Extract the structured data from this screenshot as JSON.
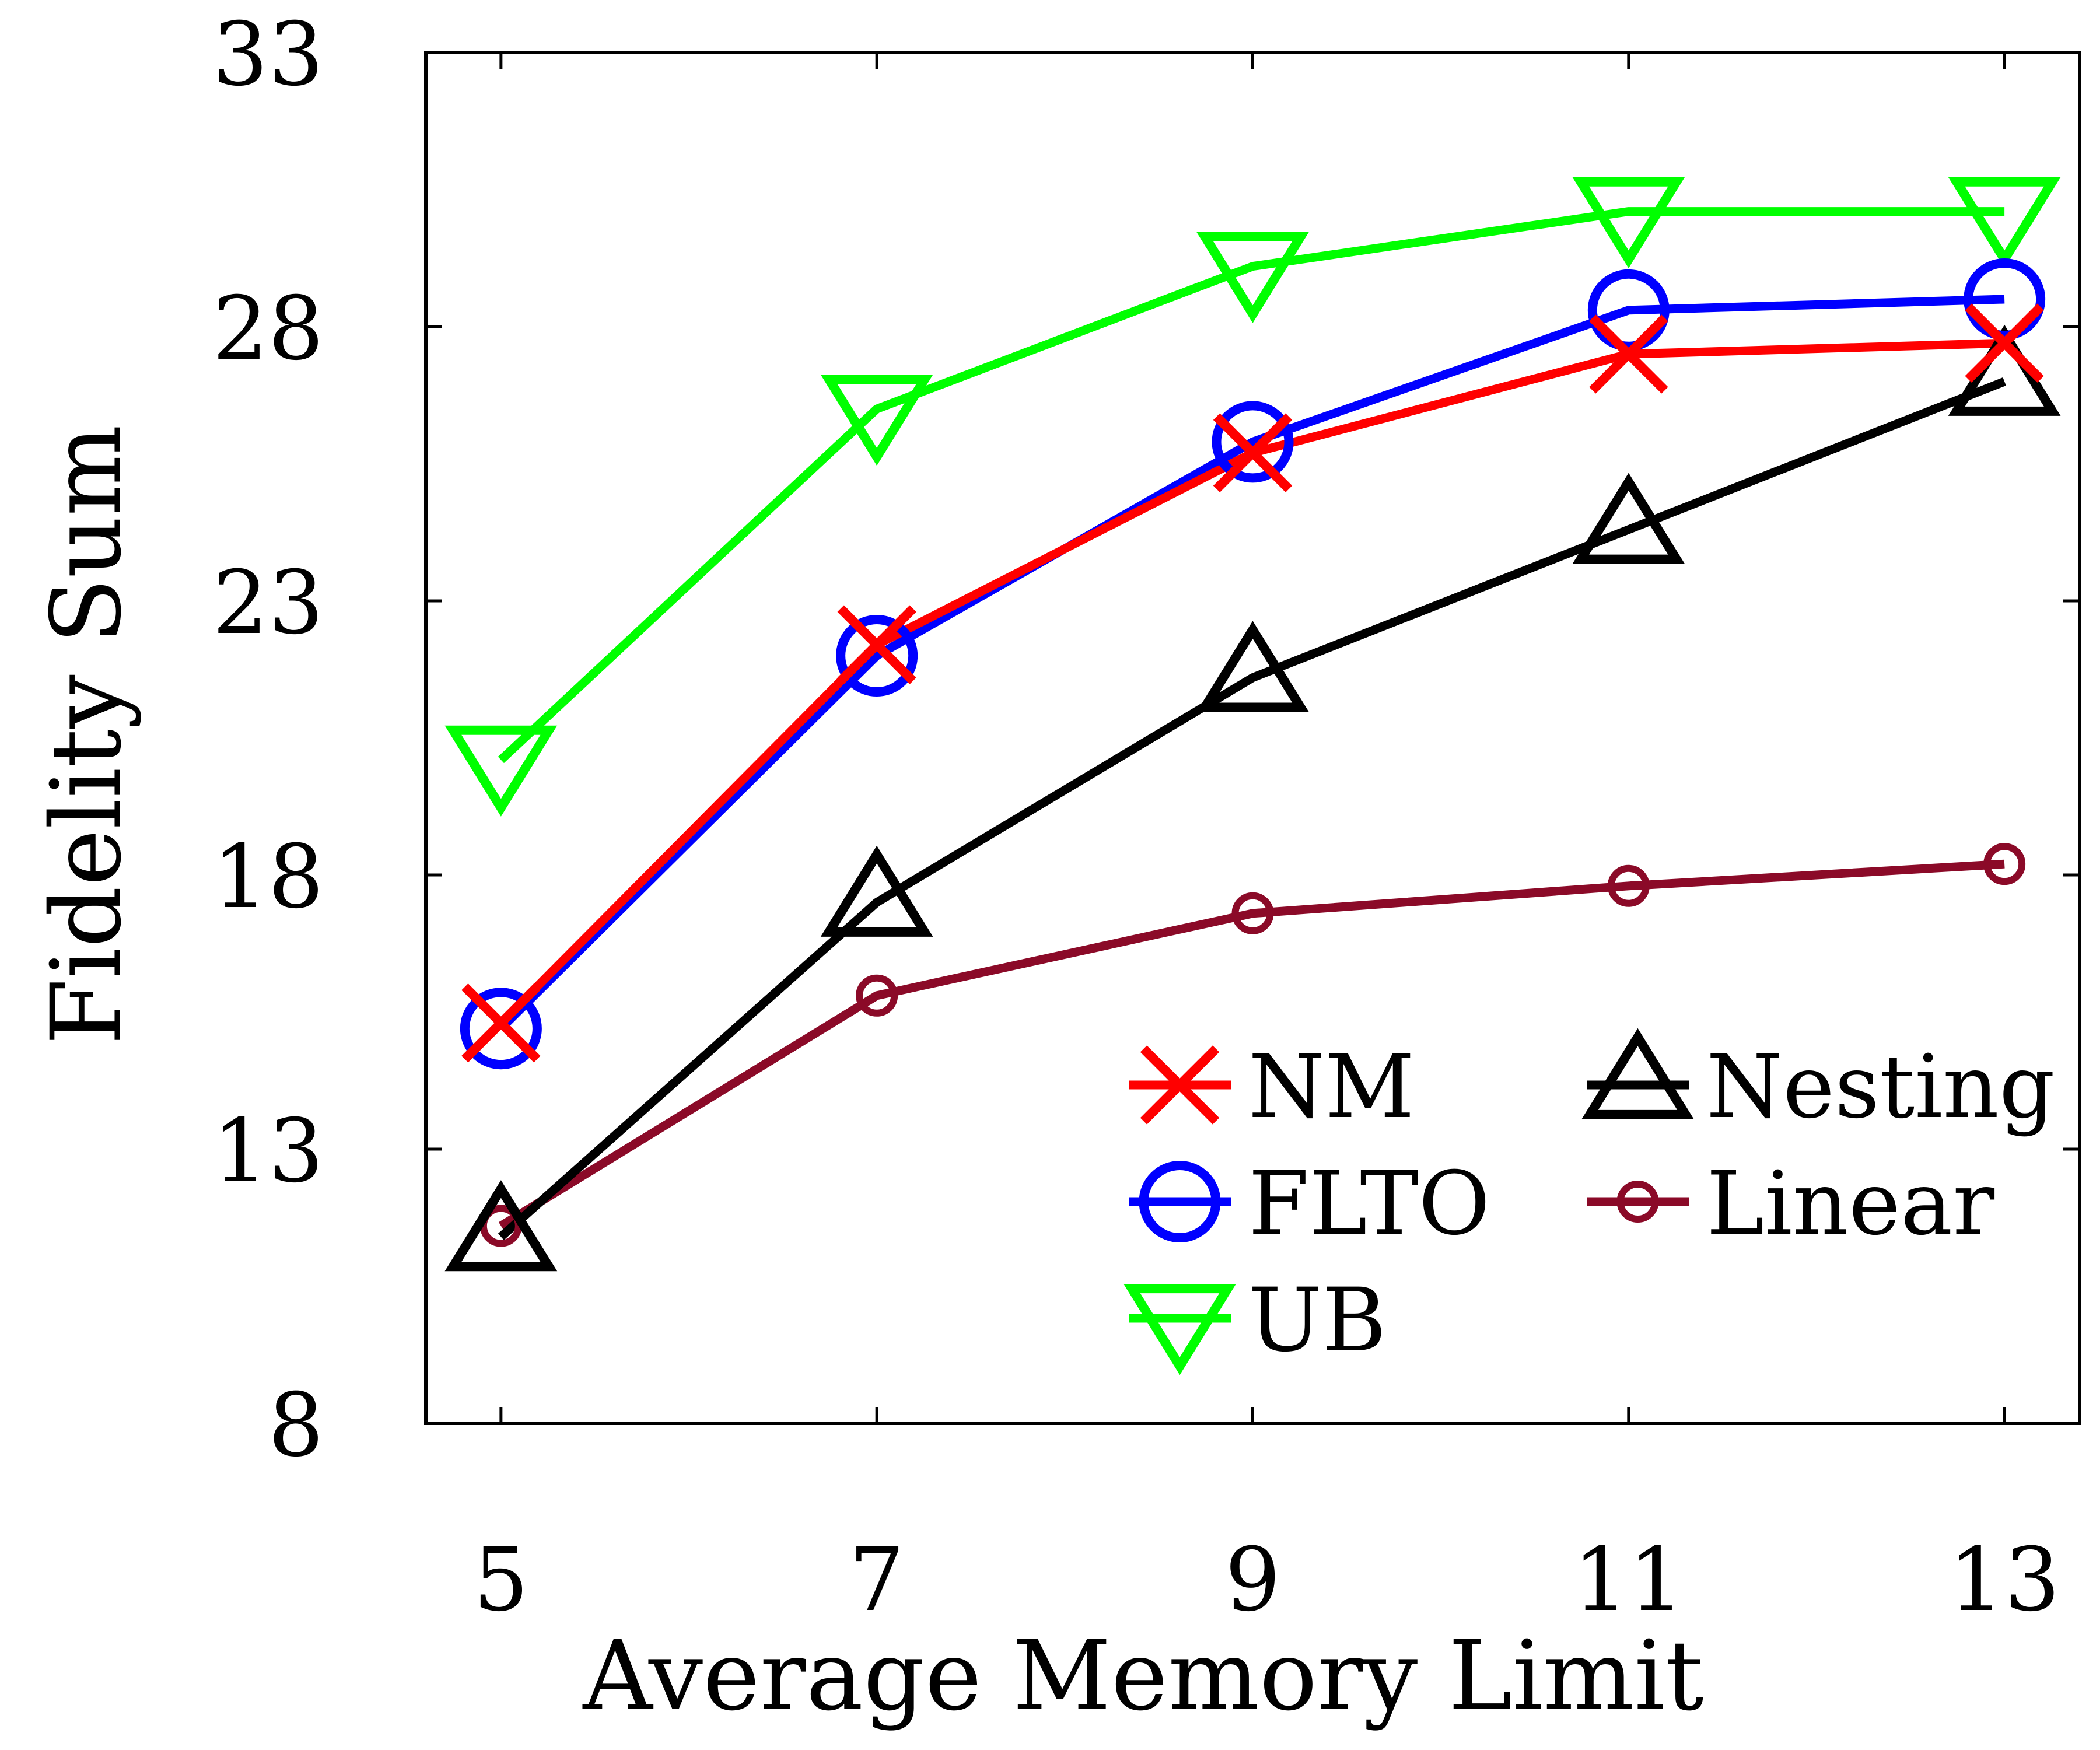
{
  "chart_data": {
    "type": "line",
    "xlabel": "Average Memory Limit",
    "ylabel": "Fidelity Sum",
    "x": [
      5,
      7,
      9,
      11,
      13
    ],
    "xticks": [
      "5",
      "7",
      "9",
      "11",
      "13"
    ],
    "yticks": [
      "8",
      "13",
      "18",
      "23",
      "28",
      "33"
    ],
    "xlim": [
      4.6,
      13.4
    ],
    "ylim": [
      8,
      33
    ],
    "grid": false,
    "legend_position": "bottom-right",
    "series": [
      {
        "name": "NM",
        "values": [
          15.3,
          22.2,
          25.7,
          27.5,
          27.7
        ],
        "color": "#ff0000",
        "marker": "x"
      },
      {
        "name": "FLTO",
        "values": [
          15.2,
          22.0,
          25.9,
          28.3,
          28.5
        ],
        "color": "#0000ff",
        "marker": "circle"
      },
      {
        "name": "UB",
        "values": [
          20.1,
          26.5,
          29.1,
          30.1,
          30.1
        ],
        "color": "#00ff00",
        "marker": "triangle-down"
      },
      {
        "name": "Nesting",
        "values": [
          11.4,
          17.5,
          21.6,
          24.3,
          27.0
        ],
        "color": "#000000",
        "marker": "triangle-up"
      },
      {
        "name": "Linear",
        "values": [
          11.6,
          15.8,
          17.3,
          17.8,
          18.2
        ],
        "color": "#8b0a28",
        "marker": "small-circle"
      }
    ]
  }
}
